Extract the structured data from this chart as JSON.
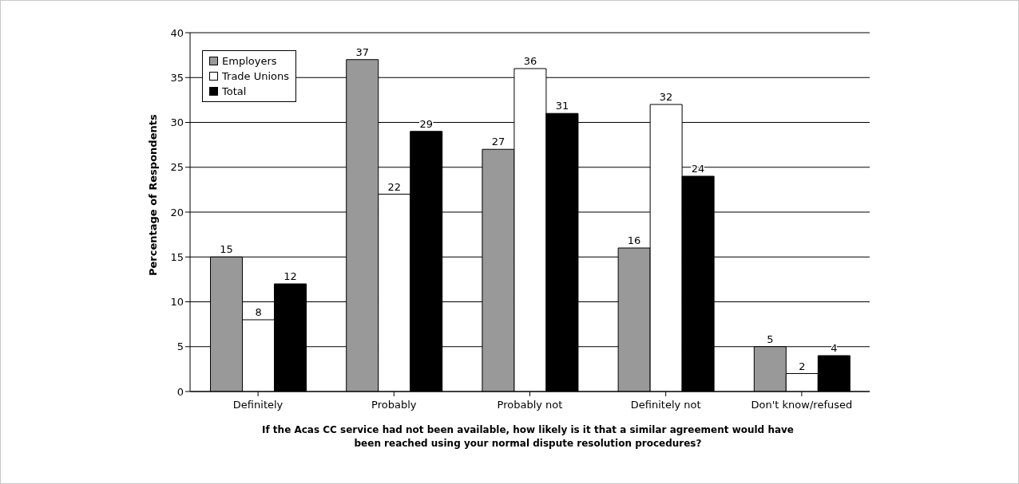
{
  "chart_data": {
    "type": "bar",
    "xlabel": "If the Acas CC service had not been available, how likely is it that a similar agreement would have been reached using your normal dispute resolution procedures?",
    "ylabel": "Percentage of Respondents",
    "categories": [
      "Definitely",
      "Probably",
      "Probably not",
      "Definitely not",
      "Don't know/refused"
    ],
    "series": [
      {
        "name": "Employers",
        "color": "#999999",
        "values": [
          15,
          37,
          27,
          16,
          5
        ]
      },
      {
        "name": "Trade Unions",
        "color": "#ffffff",
        "values": [
          8,
          22,
          36,
          32,
          2
        ]
      },
      {
        "name": "Total",
        "color": "#000000",
        "values": [
          12,
          29,
          31,
          24,
          4
        ]
      }
    ],
    "ylim": [
      0,
      40
    ],
    "yticks": [
      0,
      5,
      10,
      15,
      20,
      25,
      30,
      35,
      40
    ],
    "grid": "y",
    "legend": "top left",
    "data_labels": true
  }
}
